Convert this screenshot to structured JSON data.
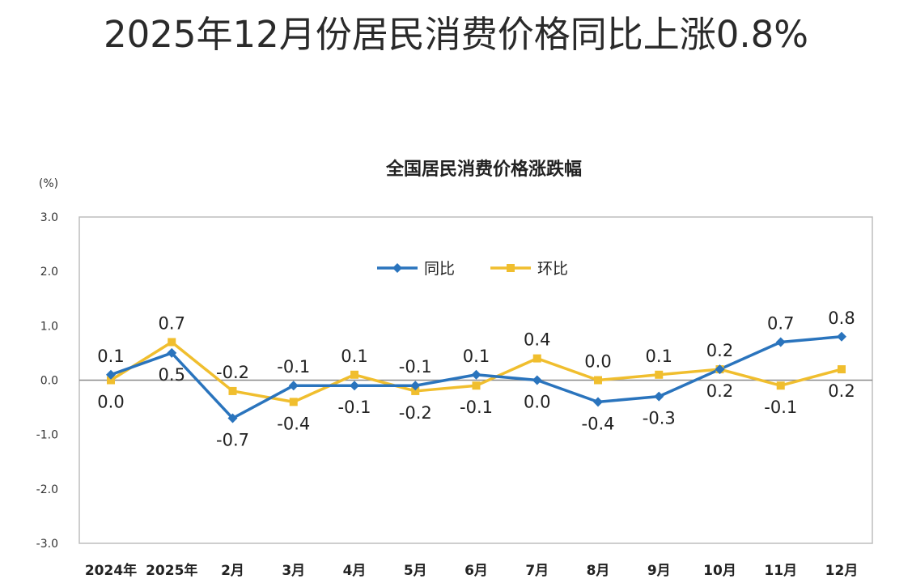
{
  "headline": "2025年12月份居民消费价格同比上涨0.8%",
  "chart_data": {
    "type": "line",
    "title": "全国居民消费价格涨跌幅",
    "unit_label": "(%)",
    "categories": [
      "2024年",
      "2025年",
      "2月",
      "3月",
      "4月",
      "5月",
      "6月",
      "7月",
      "8月",
      "9月",
      "10月",
      "11月",
      "12月"
    ],
    "ylim": [
      -3.0,
      3.0
    ],
    "yticks": [
      "3.0",
      "2.0",
      "1.0",
      "0.0",
      "-1.0",
      "-2.0",
      "-3.0"
    ],
    "ytick_values": [
      3.0,
      2.0,
      1.0,
      0.0,
      -1.0,
      -2.0,
      -3.0
    ],
    "legend_position": "top-center",
    "grid": false,
    "series": [
      {
        "name": "同比",
        "color": "#2a74bd",
        "marker": "diamond",
        "values": [
          0.1,
          0.5,
          -0.7,
          -0.1,
          -0.1,
          -0.1,
          0.1,
          0.0,
          -0.4,
          -0.3,
          0.2,
          0.7,
          0.8
        ],
        "labels": [
          "0.1",
          "0.5",
          "-0.7",
          "-0.1",
          "-0.1",
          "-0.1",
          "0.1",
          "0.0",
          "-0.4",
          "-0.3",
          "0.2",
          "0.7",
          "0.8"
        ]
      },
      {
        "name": "环比",
        "color": "#f0be2e",
        "marker": "square",
        "values": [
          0.0,
          0.7,
          -0.2,
          -0.4,
          0.1,
          -0.2,
          -0.1,
          0.4,
          0.0,
          0.1,
          0.2,
          -0.1,
          0.2
        ],
        "labels": [
          "0.0",
          "0.7",
          "-0.2",
          "-0.4",
          "0.1",
          "-0.2",
          "-0.1",
          "0.4",
          "0.0",
          "0.1",
          "0.2",
          "-0.1",
          "0.2"
        ]
      }
    ]
  }
}
